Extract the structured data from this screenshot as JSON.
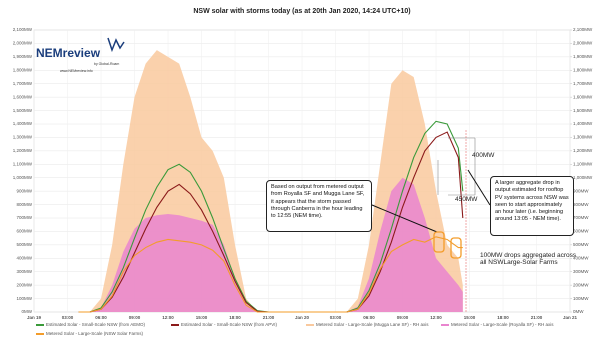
{
  "logo": {
    "name": "NEMreview",
    "by": "by Global-Roam",
    "url": "www.NEMreview.info"
  },
  "chart_data": {
    "type": "line",
    "title": "NSW solar with storms today (as at 20th Jan 2020, 14:24 UTC+10)",
    "x": [
      4,
      5,
      6,
      7,
      8,
      9,
      10,
      11,
      12,
      13,
      14,
      15,
      16,
      17,
      18,
      19,
      20,
      21,
      27,
      28,
      29,
      30,
      31,
      32,
      33,
      34,
      35,
      36,
      37,
      38,
      38.4
    ],
    "xlim": [
      0,
      48
    ],
    "xticks": [
      {
        "value": 0,
        "label": "Jan 19"
      },
      {
        "value": 3,
        "label": "03:00"
      },
      {
        "value": 6,
        "label": "06:00"
      },
      {
        "value": 9,
        "label": "09:00"
      },
      {
        "value": 12,
        "label": "12:00"
      },
      {
        "value": 15,
        "label": "15:00"
      },
      {
        "value": 18,
        "label": "18:00"
      },
      {
        "value": 21,
        "label": "21:00"
      },
      {
        "value": 24,
        "label": "Jan 20"
      },
      {
        "value": 27,
        "label": "03:00"
      },
      {
        "value": 30,
        "label": "06:00"
      },
      {
        "value": 33,
        "label": "09:00"
      },
      {
        "value": 36,
        "label": "12:00"
      },
      {
        "value": 39,
        "label": "15:00"
      },
      {
        "value": 42,
        "label": "18:00"
      },
      {
        "value": 45,
        "label": "21:00"
      },
      {
        "value": 48,
        "label": "Jan 21"
      }
    ],
    "ylim": [
      0,
      2100
    ],
    "yticks": [
      {
        "value": 0,
        "label": "0MW"
      },
      {
        "value": 100,
        "label": "100MW"
      },
      {
        "value": 200,
        "label": "200MW"
      },
      {
        "value": 300,
        "label": "300MW"
      },
      {
        "value": 400,
        "label": "400MW"
      },
      {
        "value": 500,
        "label": "500MW"
      },
      {
        "value": 600,
        "label": "600MW"
      },
      {
        "value": 700,
        "label": "700MW"
      },
      {
        "value": 800,
        "label": "800MW"
      },
      {
        "value": 900,
        "label": "900MW"
      },
      {
        "value": 1000,
        "label": "1,000MW"
      },
      {
        "value": 1100,
        "label": "1,100MW"
      },
      {
        "value": 1200,
        "label": "1,200MW"
      },
      {
        "value": 1300,
        "label": "1,300MW"
      },
      {
        "value": 1400,
        "label": "1,400MW"
      },
      {
        "value": 1500,
        "label": "1,500MW"
      },
      {
        "value": 1600,
        "label": "1,600MW"
      },
      {
        "value": 1700,
        "label": "1,700MW"
      },
      {
        "value": 1800,
        "label": "1,800MW"
      },
      {
        "value": 1900,
        "label": "1,900MW"
      },
      {
        "value": 2000,
        "label": "2,000MW"
      },
      {
        "value": 2100,
        "label": "2,100MW"
      }
    ],
    "y2lim": [
      0,
      2100
    ],
    "y2ticks": [
      {
        "value": 0,
        "label": "0MW"
      },
      {
        "value": 100,
        "label": "100MW"
      },
      {
        "value": 200,
        "label": "200MW"
      },
      {
        "value": 300,
        "label": "300MW"
      },
      {
        "value": 400,
        "label": "400MW"
      },
      {
        "value": 500,
        "label": "500MW"
      },
      {
        "value": 600,
        "label": "600MW"
      },
      {
        "value": 700,
        "label": "700MW"
      },
      {
        "value": 800,
        "label": "800MW"
      },
      {
        "value": 900,
        "label": "900MW"
      },
      {
        "value": 1000,
        "label": "1,000MW"
      },
      {
        "value": 1100,
        "label": "1,100MW"
      },
      {
        "value": 1200,
        "label": "1,200MW"
      },
      {
        "value": 1300,
        "label": "1,300MW"
      },
      {
        "value": 1400,
        "label": "1,400MW"
      },
      {
        "value": 1500,
        "label": "1,500MW"
      },
      {
        "value": 1600,
        "label": "1,600MW"
      },
      {
        "value": 1700,
        "label": "1,700MW"
      },
      {
        "value": 1800,
        "label": "1,800MW"
      },
      {
        "value": 1900,
        "label": "1,900MW"
      },
      {
        "value": 2000,
        "label": "2,000MW"
      },
      {
        "value": 2100,
        "label": "2,100MW"
      }
    ],
    "grid": true,
    "series": [
      {
        "name": "Metered Solar - Large-Scale (Mugga Lane SF) - RH axis",
        "color": "#f9c99e",
        "axis": "y2",
        "values": [
          0,
          0,
          100,
          500,
          1100,
          1600,
          1850,
          1950,
          1900,
          1850,
          1600,
          1300,
          1200,
          1000,
          500,
          100,
          0,
          0,
          0,
          0,
          100,
          500,
          1100,
          1700,
          1800,
          1750,
          1400,
          900,
          500,
          400,
          200
        ]
      },
      {
        "name": "Metered Solar - Large-Scale (Royalla SF) - RH axis",
        "color": "#e985cf",
        "axis": "y2",
        "values": [
          0,
          0,
          30,
          200,
          450,
          620,
          700,
          720,
          730,
          720,
          700,
          680,
          650,
          500,
          250,
          60,
          0,
          0,
          0,
          0,
          40,
          250,
          600,
          900,
          1000,
          950,
          700,
          400,
          300,
          200,
          150
        ]
      },
      {
        "name": "Estimated Solar - Small-Scale NSW (from AEMO)",
        "color": "#3a9a3a",
        "values": [
          0,
          0,
          30,
          150,
          330,
          550,
          760,
          930,
          1060,
          1100,
          1040,
          900,
          700,
          470,
          250,
          80,
          10,
          0,
          0,
          0,
          30,
          160,
          360,
          620,
          900,
          1150,
          1330,
          1420,
          1400,
          1220,
          900
        ]
      },
      {
        "name": "Estimated Solar - Small-Scale NSW (from APVI)",
        "color": "#8b1a1a",
        "values": [
          0,
          0,
          20,
          110,
          260,
          440,
          620,
          780,
          900,
          950,
          880,
          760,
          600,
          420,
          230,
          70,
          5,
          0,
          0,
          0,
          20,
          120,
          300,
          520,
          780,
          1000,
          1200,
          1300,
          1340,
          1150,
          700
        ]
      },
      {
        "name": "Metered Solar - Large-Scale (NSW Solar Farms)",
        "color": "#f39c2a",
        "values": [
          0,
          0,
          20,
          120,
          300,
          420,
          480,
          520,
          540,
          530,
          520,
          500,
          460,
          380,
          200,
          50,
          0,
          0,
          0,
          0,
          20,
          140,
          320,
          450,
          500,
          540,
          520,
          560,
          540,
          480,
          480
        ]
      }
    ]
  },
  "annotations": {
    "storm_note": "Based on output from metered output from Royalla SF and Mugga Lane SF, it appears that the storm passed through Canberra in the hour leading to 12:55 (NEM time).",
    "rooftop_note": "A larger aggregate drop in output estimated for rooftop PV systems across NSW was seen to start approximately an hour later (i.e. beginning around 13:05 - NEM time).",
    "drop_400": "400MW",
    "drop_450": "450MW",
    "farms_note": "100MW drops aggregated across all NSWLarge-Solar Farms"
  }
}
